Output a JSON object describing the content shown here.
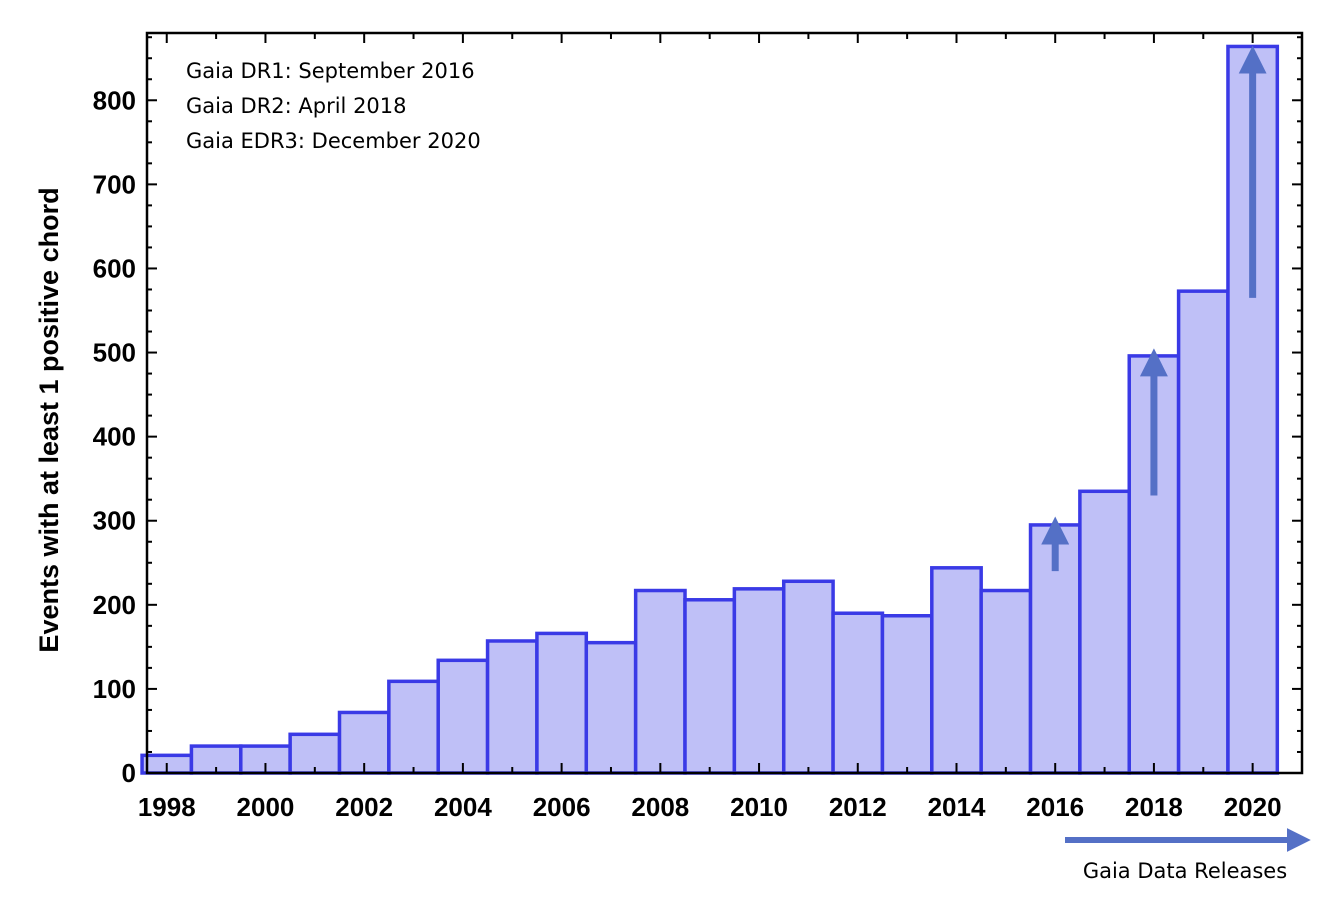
{
  "chart_data": {
    "type": "bar",
    "title": "",
    "xlabel": "",
    "ylabel": "Events with at least 1 positive chord",
    "x": [
      1998,
      1999,
      2000,
      2001,
      2002,
      2003,
      2004,
      2005,
      2006,
      2007,
      2008,
      2009,
      2010,
      2011,
      2012,
      2013,
      2014,
      2015,
      2016,
      2017,
      2018,
      2019,
      2020
    ],
    "values": [
      21,
      32,
      32,
      46,
      72,
      109,
      134,
      157,
      166,
      155,
      217,
      206,
      219,
      228,
      190,
      187,
      244,
      217,
      295,
      335,
      496,
      573,
      864
    ],
    "xlim": [
      1997.6,
      2021.0
    ],
    "ylim": [
      0,
      880
    ],
    "xticks": [
      1998,
      2000,
      2002,
      2004,
      2006,
      2008,
      2010,
      2012,
      2014,
      2016,
      2018,
      2020
    ],
    "yticks": [
      0,
      100,
      200,
      300,
      400,
      500,
      600,
      700,
      800
    ],
    "grid": false,
    "annotations": [
      "Gaia DR1: September 2016",
      "Gaia DR2: April 2018",
      "Gaia EDR3: December 2020"
    ],
    "release_arrows": [
      {
        "x": 2016,
        "from": 240,
        "to": 290
      },
      {
        "x": 2018,
        "from": 330,
        "to": 490
      },
      {
        "x": 2020,
        "from": 565,
        "to": 850
      }
    ],
    "release_label": "Gaia Data Releases",
    "colors": {
      "bar_fill": "#bfc0f7",
      "bar_edge": "#3a3ae6",
      "arrow": "#5470c6"
    }
  }
}
